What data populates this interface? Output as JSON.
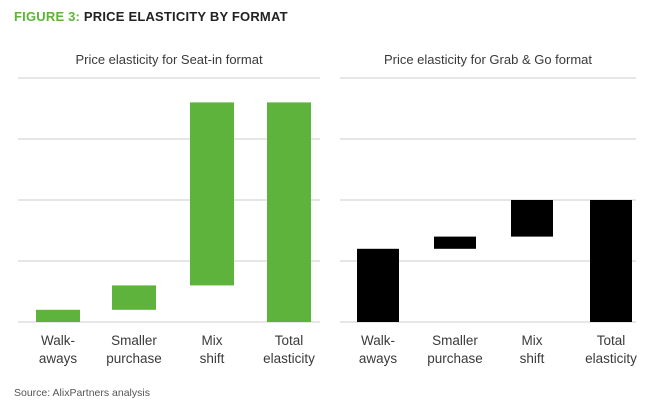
{
  "figure": {
    "label": "FIGURE 3:",
    "title": "PRICE ELASTICITY BY FORMAT"
  },
  "source": "Source: AlixPartners analysis",
  "colors": {
    "seat_in_bar": "#5db33b",
    "grab_and_go_bar": "#000000",
    "gridline": "#cccccc",
    "figure_label": "#5db33b"
  },
  "chart_data": [
    {
      "type": "waterfall",
      "title": "Price elasticity for Seat-in format",
      "categories": [
        [
          "Walk-",
          "aways"
        ],
        [
          "Smaller",
          "purchase"
        ],
        [
          "Mix",
          "shift"
        ],
        [
          "Total",
          "elasticity"
        ]
      ],
      "bars": [
        {
          "start": 0,
          "end": 0.2
        },
        {
          "start": 0.2,
          "end": 0.6
        },
        {
          "start": 0.6,
          "end": 3.6
        },
        {
          "start": 0,
          "end": 3.6
        }
      ],
      "ylim": [
        0,
        4
      ],
      "grid": true,
      "color": "#5db33b"
    },
    {
      "type": "waterfall",
      "title": "Price elasticity for Grab & Go format",
      "categories": [
        [
          "Walk-",
          "aways"
        ],
        [
          "Smaller",
          "purchase"
        ],
        [
          "Mix",
          "shift"
        ],
        [
          "Total",
          "elasticity"
        ]
      ],
      "bars": [
        {
          "start": 0,
          "end": 1.2
        },
        {
          "start": 1.2,
          "end": 1.4
        },
        {
          "start": 1.4,
          "end": 2.0
        },
        {
          "start": 0,
          "end": 2.0
        }
      ],
      "ylim": [
        0,
        4
      ],
      "grid": true,
      "color": "#000000"
    }
  ]
}
